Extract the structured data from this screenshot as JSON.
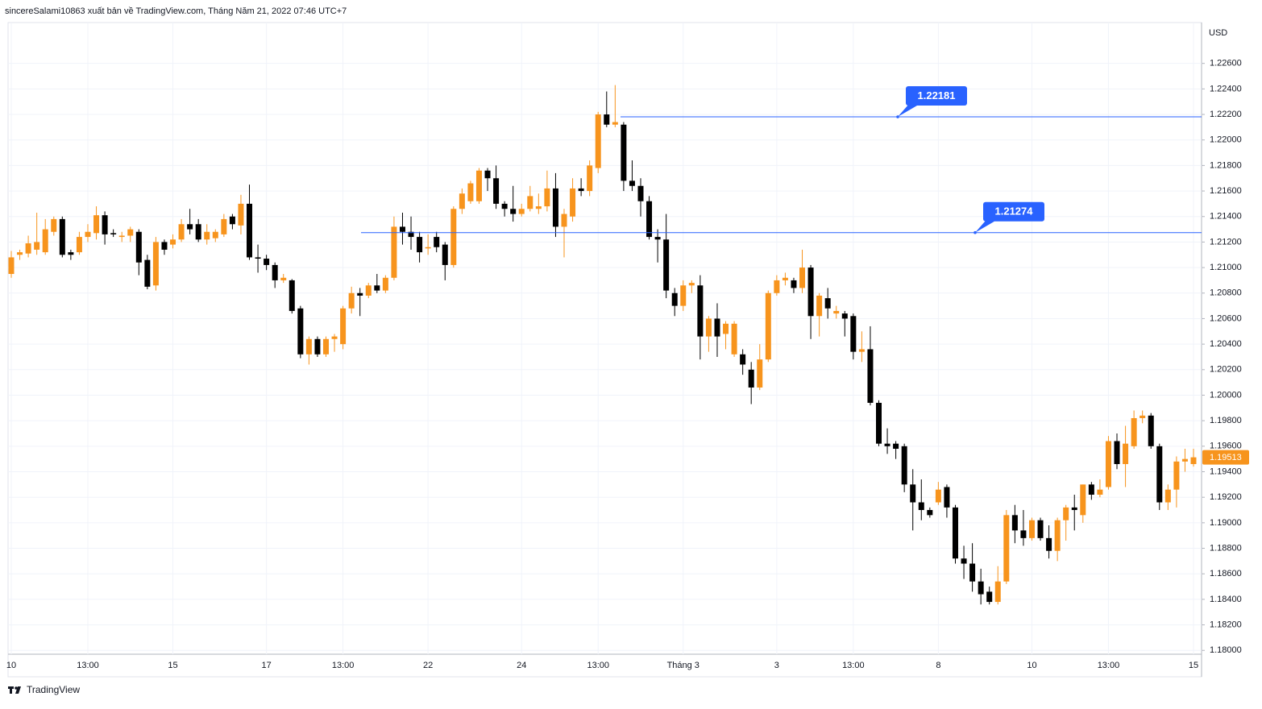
{
  "header": "sincereSalami10863 xuất bản về TradingView.com, Tháng Năm 21, 2022 07:46 UTC+7",
  "currency": "USD",
  "footer": "TradingView",
  "chart_data": {
    "type": "candlestick",
    "up_color": "#f7941d",
    "down_color": "#000000",
    "grid": true,
    "categories": [
      "10",
      null,
      null,
      null,
      null,
      null,
      null,
      null,
      null,
      "13:00",
      null,
      null,
      null,
      null,
      null,
      null,
      null,
      null,
      null,
      "15",
      null,
      null,
      null,
      null,
      null,
      null,
      null,
      null,
      null,
      null,
      "17",
      null,
      null,
      null,
      null,
      null,
      null,
      null,
      null,
      "13:00",
      null,
      null,
      null,
      null,
      null,
      null,
      null,
      null,
      null,
      "22",
      null,
      null,
      null,
      null,
      null,
      null,
      null,
      null,
      null,
      null,
      "24",
      null,
      null,
      null,
      null,
      null,
      null,
      null,
      null,
      "13:00",
      null,
      null,
      null,
      null,
      null,
      null,
      null,
      null,
      null,
      "Tháng 3",
      null,
      null,
      null,
      null,
      null,
      null,
      null,
      null,
      null,
      null,
      "3",
      null,
      null,
      null,
      null,
      null,
      null,
      null,
      null,
      "13:00",
      null,
      null,
      null,
      null,
      null,
      null,
      null,
      null,
      null,
      "8",
      null,
      null,
      null,
      null,
      null,
      null,
      null,
      null,
      null,
      null,
      "10",
      null,
      null,
      null,
      null,
      null,
      null,
      null,
      null,
      "13:00",
      null,
      null,
      null,
      null,
      null,
      null,
      null,
      null,
      null,
      "15"
    ],
    "open": [
      1.2095,
      1.211,
      1.2111,
      1.2114,
      1.2112,
      1.2128,
      1.2138,
      1.2112,
      1.2112,
      1.2124,
      1.2127,
      1.2141,
      1.2127,
      1.2124,
      1.2125,
      1.2128,
      1.2106,
      1.2086,
      1.212,
      1.2118,
      1.2122,
      1.2134,
      1.2134,
      1.2122,
      1.2123,
      1.2126,
      1.214,
      1.2133,
      1.215,
      1.2108,
      1.2107,
      1.2102,
      1.209,
      1.209,
      1.2068,
      1.2032,
      1.2044,
      1.2032,
      1.2044,
      1.204,
      1.2068,
      1.208,
      1.2078,
      1.2086,
      1.2082,
      1.2092,
      1.2132,
      1.2128,
      1.2124,
      1.2115,
      1.2124,
      1.2118,
      1.2102,
      1.2146,
      1.2152,
      1.2152,
      1.2176,
      1.217,
      1.215,
      1.2146,
      1.2142,
      1.2146,
      1.2146,
      1.2148,
      1.2162,
      1.2132,
      1.214,
      1.2162,
      1.216,
      1.2178,
      1.222,
      1.2212,
      1.2212,
      1.2168,
      1.2164,
      1.2152,
      1.2124,
      1.2122,
      1.208,
      1.207,
      1.2086,
      1.2086,
      1.2046,
      1.206,
      1.2048,
      1.2032,
      1.2032,
      1.202,
      1.2006,
      1.2028,
      1.208,
      1.209,
      1.209,
      1.2084,
      1.21,
      1.2062,
      1.2076,
      1.2064,
      1.2064,
      1.2062,
      1.2034,
      1.2036,
      1.1994,
      1.1962,
      1.1962,
      1.196,
      1.193,
      1.1916,
      1.191,
      1.1916,
      1.1928,
      1.1912,
      1.1872,
      1.1868,
      1.1854,
      1.1846,
      1.1838,
      1.1854,
      1.1906,
      1.1894,
      1.1888,
      1.1902,
      1.1888,
      1.1878,
      1.1902,
      1.1912,
      1.1906,
      1.193,
      1.1922,
      1.1928,
      1.1964,
      1.1946,
      1.196,
      1.1982,
      1.1984,
      1.196,
      1.1916,
      1.1926,
      1.1948,
      1.1946
    ],
    "high": [
      1.2113,
      1.2114,
      1.2125,
      1.2143,
      1.2138,
      1.214,
      1.214,
      1.2114,
      1.2128,
      1.2134,
      1.2148,
      1.2144,
      1.213,
      1.2128,
      1.2132,
      1.213,
      1.211,
      1.2124,
      1.2122,
      1.2126,
      1.2138,
      1.2146,
      1.2138,
      1.2134,
      1.213,
      1.2142,
      1.2142,
      1.2157,
      1.2165,
      1.2118,
      1.211,
      1.2104,
      1.2095,
      1.2091,
      1.207,
      1.2046,
      1.2046,
      1.2046,
      1.2048,
      1.207,
      1.2085,
      1.2084,
      1.2088,
      1.2095,
      1.2094,
      1.214,
      1.2143,
      1.214,
      1.2128,
      1.2126,
      1.2128,
      1.212,
      1.2148,
      1.2162,
      1.2168,
      1.2178,
      1.2178,
      1.218,
      1.2152,
      1.2164,
      1.215,
      1.2164,
      1.2158,
      1.2176,
      1.2174,
      1.2146,
      1.217,
      1.217,
      1.2184,
      1.2222,
      1.2238,
      1.2243,
      1.2214,
      1.2184,
      1.217,
      1.2156,
      1.213,
      1.2142,
      1.2084,
      1.209,
      1.209,
      1.2094,
      1.2062,
      1.2072,
      1.2058,
      1.2058,
      1.2036,
      1.2026,
      1.204,
      1.2082,
      1.2094,
      1.2096,
      1.2092,
      1.2114,
      1.2102,
      1.208,
      1.2084,
      1.207,
      1.2066,
      1.2064,
      1.205,
      1.2054,
      1.1996,
      1.1974,
      1.1964,
      1.1962,
      1.1942,
      1.1934,
      1.1912,
      1.1932,
      1.193,
      1.1914,
      1.1882,
      1.1884,
      1.1864,
      1.185,
      1.1866,
      1.191,
      1.1914,
      1.191,
      1.1904,
      1.1904,
      1.1898,
      1.1904,
      1.1914,
      1.1922,
      1.193,
      1.1932,
      1.1934,
      1.1968,
      1.197,
      1.1976,
      1.1988,
      1.1988,
      1.1986,
      1.1962,
      1.193,
      1.1952,
      1.1958,
      1.1958
    ],
    "low": [
      1.2092,
      1.2106,
      1.2108,
      1.211,
      1.211,
      1.2125,
      1.2108,
      1.2106,
      1.211,
      1.212,
      1.2122,
      1.2118,
      1.2124,
      1.212,
      1.212,
      1.2094,
      1.2083,
      1.2082,
      1.211,
      1.2115,
      1.212,
      1.2126,
      1.212,
      1.2118,
      1.212,
      1.2124,
      1.213,
      1.2126,
      1.2106,
      1.2096,
      1.2098,
      1.2084,
      1.2088,
      1.2064,
      1.2029,
      1.2024,
      1.203,
      1.203,
      1.2034,
      1.2036,
      1.2064,
      1.2062,
      1.2076,
      1.208,
      1.208,
      1.209,
      1.2118,
      1.2114,
      1.2104,
      1.211,
      1.2112,
      1.209,
      1.21,
      1.2142,
      1.215,
      1.215,
      1.216,
      1.2146,
      1.214,
      1.2136,
      1.214,
      1.2144,
      1.2142,
      1.2144,
      1.2124,
      1.2108,
      1.2136,
      1.2156,
      1.2156,
      1.2174,
      1.221,
      1.221,
      1.216,
      1.216,
      1.214,
      1.2122,
      1.2104,
      1.2076,
      1.2062,
      1.2066,
      1.208,
      1.2028,
      1.2034,
      1.203,
      1.2036,
      1.203,
      1.2016,
      1.1993,
      1.2004,
      1.2026,
      1.2078,
      1.2086,
      1.208,
      1.208,
      1.2044,
      1.2046,
      1.206,
      1.206,
      1.2046,
      1.2028,
      1.2026,
      1.1992,
      1.196,
      1.1954,
      1.195,
      1.1924,
      1.1894,
      1.1902,
      1.1904,
      1.1914,
      1.1904,
      1.1868,
      1.1856,
      1.1846,
      1.1836,
      1.1836,
      1.1836,
      1.1852,
      1.1884,
      1.1882,
      1.1886,
      1.1886,
      1.1872,
      1.187,
      1.1886,
      1.1894,
      1.19,
      1.1918,
      1.192,
      1.1926,
      1.1942,
      1.1928,
      1.1958,
      1.1978,
      1.1958,
      1.191,
      1.191,
      1.1912,
      1.194,
      1.1944
    ],
    "close": [
      1.2108,
      1.2112,
      1.2119,
      1.212,
      1.213,
      1.2138,
      1.211,
      1.211,
      1.2124,
      1.2128,
      1.2141,
      1.2126,
      1.2126,
      1.2125,
      1.213,
      1.2104,
      1.2085,
      1.212,
      1.2114,
      1.2122,
      1.2134,
      1.213,
      1.2122,
      1.2128,
      1.2128,
      1.2138,
      1.2134,
      1.215,
      1.2108,
      1.2107,
      1.2102,
      1.209,
      1.2092,
      1.2066,
      1.2032,
      1.2044,
      1.2032,
      1.2044,
      1.2046,
      1.2068,
      1.208,
      1.2078,
      1.2086,
      1.2082,
      1.2092,
      1.2132,
      1.2128,
      1.2124,
      1.2112,
      1.2116,
      1.2116,
      1.2102,
      1.2146,
      1.2158,
      1.2166,
      1.2176,
      1.217,
      1.215,
      1.2146,
      1.2142,
      1.2146,
      1.2156,
      1.2148,
      1.2162,
      1.2132,
      1.2142,
      1.2162,
      1.216,
      1.218,
      1.222,
      1.2212,
      1.2214,
      1.2168,
      1.2164,
      1.2152,
      1.2124,
      1.2122,
      1.2082,
      1.207,
      1.2086,
      1.2088,
      1.2046,
      1.206,
      1.2046,
      1.2056,
      1.2056,
      1.2024,
      1.2006,
      1.2028,
      1.208,
      1.209,
      1.2092,
      1.2084,
      1.21,
      1.2062,
      1.2078,
      1.2068,
      1.2066,
      1.206,
      1.2034,
      1.2036,
      1.1994,
      1.1962,
      1.196,
      1.1958,
      1.193,
      1.1916,
      1.191,
      1.1906,
      1.1926,
      1.1912,
      1.1872,
      1.1868,
      1.1854,
      1.1844,
      1.1838,
      1.1854,
      1.1906,
      1.1894,
      1.1888,
      1.1902,
      1.1888,
      1.1878,
      1.1902,
      1.1912,
      1.191,
      1.193,
      1.1922,
      1.1926,
      1.1964,
      1.1946,
      1.1962,
      1.1982,
      1.1984,
      1.196,
      1.1916,
      1.1926,
      1.1948,
      1.195,
      1.19513
    ],
    "ylim": [
      1.1797,
      1.2292
    ],
    "yticks": [
      {
        "value": 1.18,
        "label": "1.18000"
      },
      {
        "value": 1.182,
        "label": "1.18200"
      },
      {
        "value": 1.184,
        "label": "1.18400"
      },
      {
        "value": 1.186,
        "label": "1.18600"
      },
      {
        "value": 1.188,
        "label": "1.18800"
      },
      {
        "value": 1.19,
        "label": "1.19000"
      },
      {
        "value": 1.192,
        "label": "1.19200"
      },
      {
        "value": 1.194,
        "label": "1.19400"
      },
      {
        "value": 1.196,
        "label": "1.19600"
      },
      {
        "value": 1.198,
        "label": "1.19800"
      },
      {
        "value": 1.2,
        "label": "1.20000"
      },
      {
        "value": 1.202,
        "label": "1.20200"
      },
      {
        "value": 1.204,
        "label": "1.20400"
      },
      {
        "value": 1.206,
        "label": "1.20600"
      },
      {
        "value": 1.208,
        "label": "1.20800"
      },
      {
        "value": 1.21,
        "label": "1.21000"
      },
      {
        "value": 1.212,
        "label": "1.21200"
      },
      {
        "value": 1.214,
        "label": "1.21400"
      },
      {
        "value": 1.216,
        "label": "1.21600"
      },
      {
        "value": 1.218,
        "label": "1.21800"
      },
      {
        "value": 1.22,
        "label": "1.22000"
      },
      {
        "value": 1.222,
        "label": "1.22200"
      },
      {
        "value": 1.224,
        "label": "1.22400"
      },
      {
        "value": 1.226,
        "label": "1.22600"
      }
    ],
    "levels": [
      1.22181,
      1.21274
    ],
    "level_color": "#2962ff",
    "last_price": 1.19513
  }
}
